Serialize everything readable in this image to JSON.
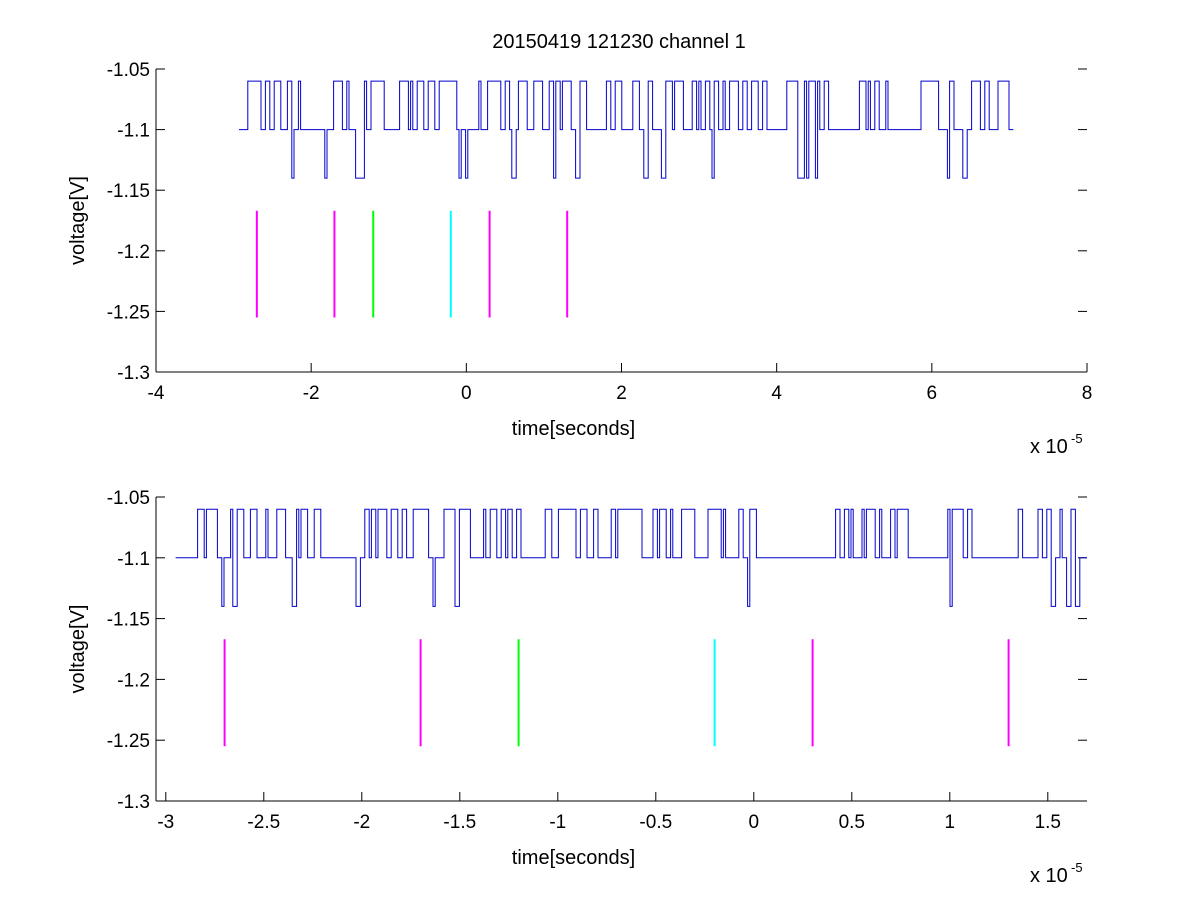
{
  "figure": {
    "title": "20150419 121230 channel 1"
  },
  "chart_data": [
    {
      "type": "line",
      "xlabel": "time[seconds]",
      "ylabel": "voltage[V]",
      "x_exponent_label": "x 10",
      "x_exponent": "-5",
      "xlim": [
        -4,
        8
      ],
      "ylim": [
        -1.3,
        -1.05
      ],
      "xticks": [
        "-4",
        "-2",
        "0",
        "2",
        "4",
        "6",
        "8"
      ],
      "yticks": [
        "-1.05",
        "-1.1",
        "-1.15",
        "-1.2",
        "-1.25",
        "-1.3"
      ],
      "grid": false,
      "signal": {
        "color": "#0000cc",
        "baseline": -1.1,
        "levels": [
          -1.06,
          -1.1,
          -1.14
        ],
        "x_range": [
          -2.93,
          7.03
        ],
        "quiet_intervals": [
          [
            1.5,
            1.8
          ],
          [
            4.7,
            4.9
          ],
          [
            5.6,
            5.8
          ]
        ]
      },
      "markers": [
        {
          "x": -2.7,
          "color": "#ff00ff",
          "y_range": [
            -1.255,
            -1.167
          ]
        },
        {
          "x": -1.7,
          "color": "#ff00ff",
          "y_range": [
            -1.255,
            -1.167
          ]
        },
        {
          "x": -1.2,
          "color": "#00ff00",
          "y_range": [
            -1.255,
            -1.167
          ]
        },
        {
          "x": -0.2,
          "color": "#00ffff",
          "y_range": [
            -1.255,
            -1.167
          ]
        },
        {
          "x": 0.3,
          "color": "#ff00ff",
          "y_range": [
            -1.255,
            -1.167
          ]
        },
        {
          "x": 1.3,
          "color": "#ff00ff",
          "y_range": [
            -1.255,
            -1.167
          ]
        }
      ]
    },
    {
      "type": "line",
      "xlabel": "time[seconds]",
      "ylabel": "voltage[V]",
      "x_exponent_label": "x 10",
      "x_exponent": "-5",
      "xlim": [
        -3.05,
        1.7
      ],
      "ylim": [
        -1.3,
        -1.05
      ],
      "xticks": [
        "-3",
        "-2.5",
        "-2",
        "-1.5",
        "-1",
        "-0.5",
        "0",
        "0.5",
        "1",
        "1.5"
      ],
      "yticks": [
        "-1.05",
        "-1.1",
        "-1.15",
        "-1.2",
        "-1.25",
        "-1.3"
      ],
      "grid": false,
      "signal": {
        "color": "#0000cc",
        "baseline": -1.1,
        "levels": [
          -1.06,
          -1.1,
          -1.14
        ],
        "x_range": [
          -2.95,
          1.7
        ],
        "quiet_intervals": [
          [
            -2.2,
            -2.05
          ],
          [
            -1.45,
            -1.38
          ],
          [
            0.1,
            0.4
          ],
          [
            1.1,
            1.32
          ]
        ]
      },
      "markers": [
        {
          "x": -2.7,
          "color": "#ff00ff",
          "y_range": [
            -1.255,
            -1.167
          ]
        },
        {
          "x": -1.7,
          "color": "#ff00ff",
          "y_range": [
            -1.255,
            -1.167
          ]
        },
        {
          "x": -1.2,
          "color": "#00ff00",
          "y_range": [
            -1.255,
            -1.167
          ]
        },
        {
          "x": -0.2,
          "color": "#00ffff",
          "y_range": [
            -1.255,
            -1.167
          ]
        },
        {
          "x": 0.3,
          "color": "#ff00ff",
          "y_range": [
            -1.255,
            -1.167
          ]
        },
        {
          "x": 1.3,
          "color": "#ff00ff",
          "y_range": [
            -1.255,
            -1.167
          ]
        }
      ]
    }
  ]
}
